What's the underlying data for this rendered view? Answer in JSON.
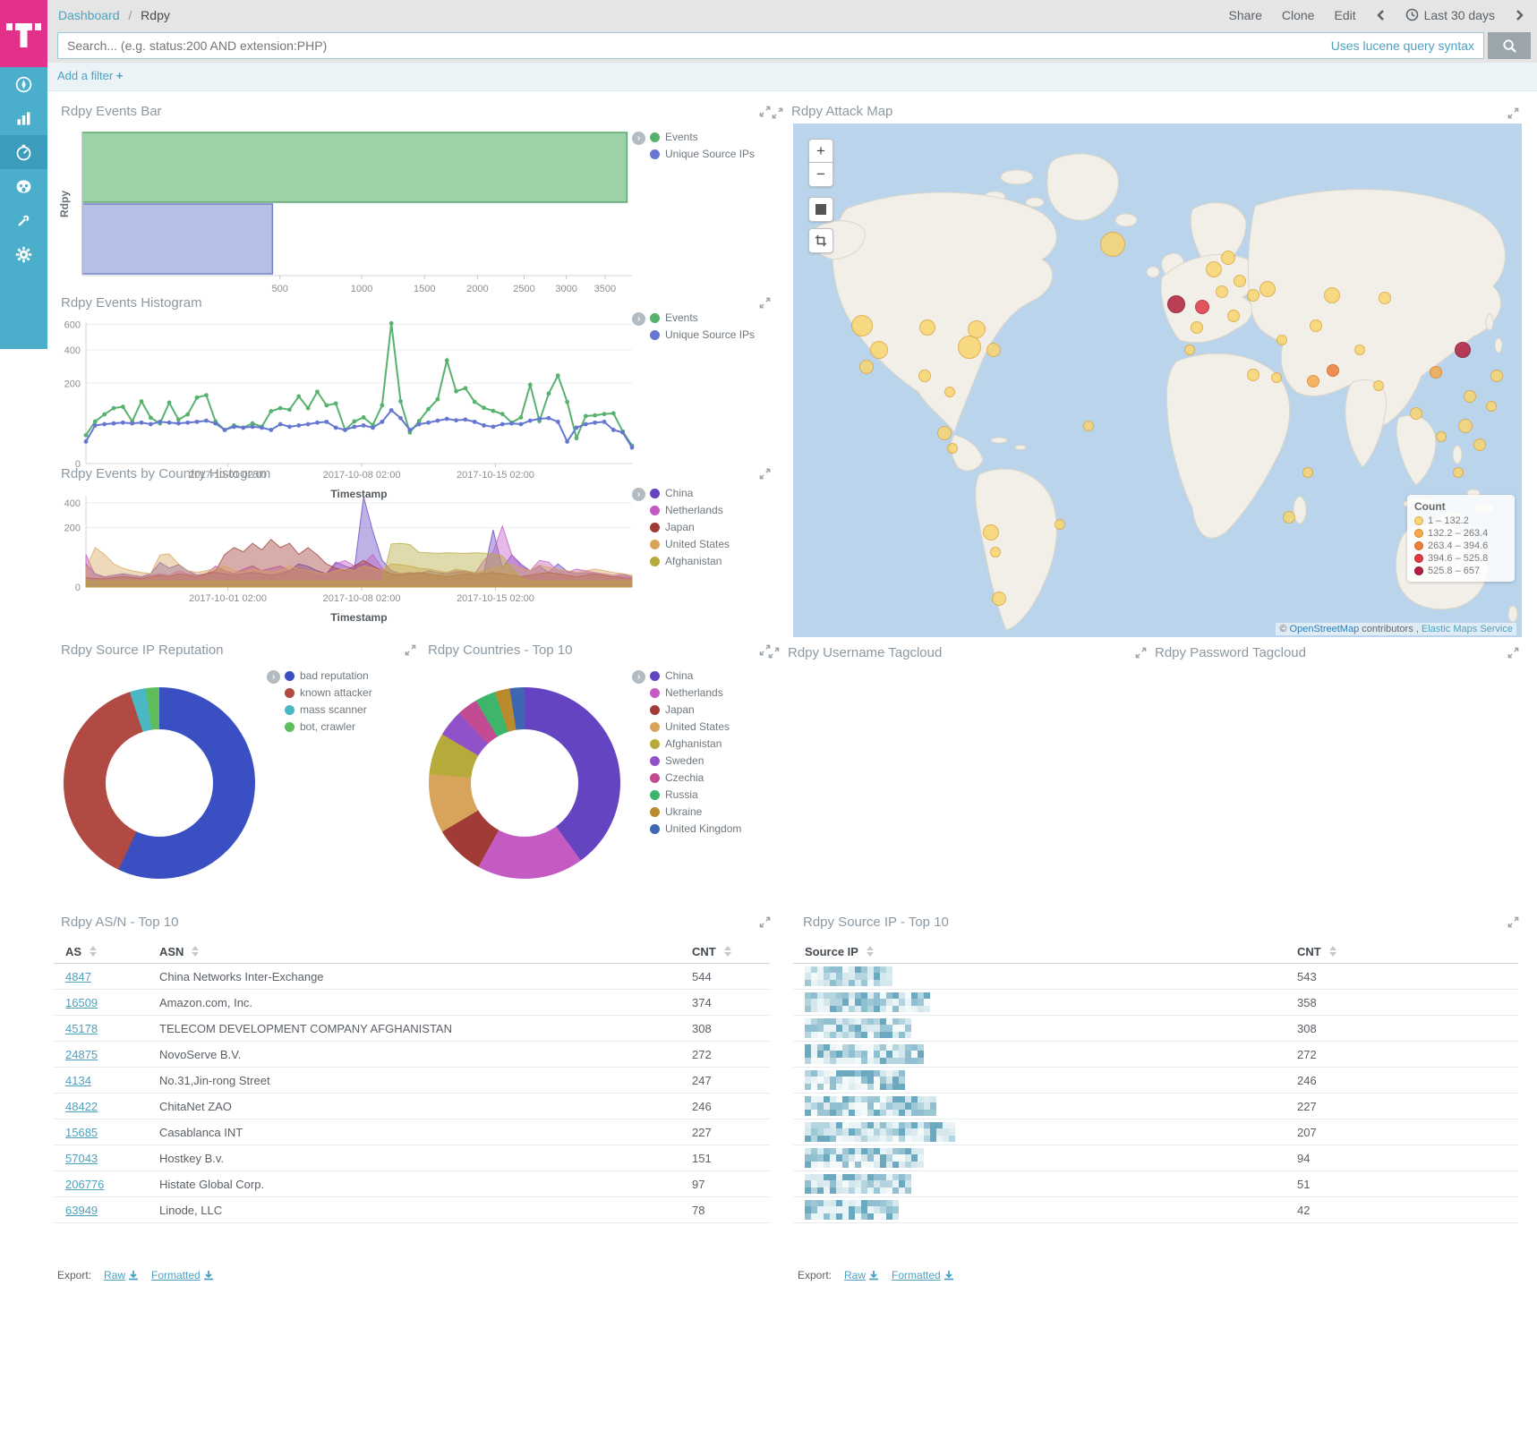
{
  "header": {
    "breadcrumb": [
      "Dashboard",
      "Rdpy"
    ],
    "breadcrumb_sep": "/",
    "menu": [
      "Share",
      "Clone",
      "Edit"
    ],
    "time_range": "Last 30 days"
  },
  "search": {
    "placeholder": "Search... (e.g. status:200 AND extension:PHP)",
    "hint": "Uses lucene query syntax"
  },
  "filter_bar": {
    "add_label": "Add a filter",
    "plus": "+"
  },
  "sidebar": {
    "items": [
      {
        "icon": "compass-icon"
      },
      {
        "icon": "bar-chart-icon"
      },
      {
        "icon": "dashboard-icon",
        "selected": true
      },
      {
        "icon": "mask-icon"
      },
      {
        "icon": "wrench-icon"
      },
      {
        "icon": "gear-icon"
      }
    ]
  },
  "panels": {
    "events_bar": "Rdpy Events Bar",
    "events_histogram": "Rdpy Events Histogram",
    "country_histogram": "Rdpy Events by Country Histogram",
    "attack_map": "Rdpy Attack Map",
    "ip_reputation": "Rdpy Source IP Reputation",
    "countries": "Rdpy Countries - Top 10",
    "username_tagcloud": "Rdpy Username Tagcloud",
    "password_tagcloud": "Rdpy Password Tagcloud",
    "asn_table": "Rdpy AS/N - Top 10",
    "srcip_table": "Rdpy Source IP - Top 10"
  },
  "chart_data": [
    {
      "id": "events_bar",
      "type": "bar",
      "orientation": "horizontal",
      "title": "Rdpy Events Bar",
      "ylabel": "Rdpy",
      "categories": [
        "Rdpy"
      ],
      "scale": "sqrt",
      "xmax": 3870,
      "xticks": [
        500,
        1000,
        1500,
        2000,
        2500,
        3000,
        3500
      ],
      "series": [
        {
          "name": "Events",
          "legend_color": "#57B26E",
          "fill": "#9BD2A7",
          "stroke": "#5FA671",
          "values": [
            3800
          ]
        },
        {
          "name": "Unique Source IPs",
          "legend_color": "#6577D0",
          "fill": "#B6BFE8",
          "stroke": "#7280C8",
          "values": [
            463
          ]
        }
      ]
    },
    {
      "id": "events_histogram",
      "type": "line",
      "title": "Rdpy Events Histogram",
      "xlabel": "Timestamp",
      "scale": "sqrt",
      "ymax": 620,
      "yticks": [
        0,
        200,
        400,
        600
      ],
      "xticks": [
        {
          "label": "2017-10-01 02:00",
          "f": 0.26
        },
        {
          "label": "2017-10-08 02:00",
          "f": 0.505
        },
        {
          "label": "2017-10-15 02:00",
          "f": 0.75
        }
      ],
      "series": [
        {
          "name": "Events",
          "color": "#57B26E",
          "values": [
            25,
            55,
            75,
            95,
            100,
            55,
            120,
            65,
            50,
            115,
            60,
            75,
            135,
            145,
            55,
            35,
            45,
            40,
            50,
            42,
            85,
            95,
            90,
            140,
            95,
            160,
            105,
            112,
            35,
            55,
            66,
            46,
            105,
            610,
            120,
            30,
            56,
            92,
            128,
            330,
            162,
            176,
            118,
            96,
            86,
            76,
            52,
            66,
            192,
            56,
            152,
            240,
            118,
            20,
            70,
            72,
            76,
            78,
            32,
            10
          ]
        },
        {
          "name": "Unique Source IPs",
          "color": "#6577D0",
          "values": [
            15,
            45,
            48,
            50,
            52,
            50,
            52,
            48,
            54,
            52,
            50,
            52,
            54,
            57,
            50,
            35,
            42,
            40,
            42,
            40,
            35,
            48,
            42,
            45,
            48,
            52,
            54,
            40,
            35,
            42,
            45,
            40,
            54,
            88,
            64,
            35,
            48,
            52,
            57,
            62,
            58,
            60,
            54,
            45,
            42,
            48,
            50,
            48,
            57,
            62,
            64,
            54,
            15,
            40,
            48,
            52,
            54,
            35,
            30,
            8
          ]
        }
      ]
    },
    {
      "id": "country_histogram",
      "type": "area",
      "title": "Rdpy Events by Country Histogram",
      "xlabel": "Timestamp",
      "scale": "sqrt",
      "ymax": 470,
      "yticks": [
        0,
        200,
        400
      ],
      "xticks": [
        {
          "label": "2017-10-01 02:00",
          "f": 0.26
        },
        {
          "label": "2017-10-08 02:00",
          "f": 0.505
        },
        {
          "label": "2017-10-15 02:00",
          "f": 0.75
        }
      ],
      "series": [
        {
          "name": "China",
          "color": "#6544C1",
          "values": [
            30,
            10,
            6,
            8,
            10,
            8,
            6,
            10,
            34,
            20,
            28,
            15,
            8,
            10,
            12,
            10,
            8,
            10,
            12,
            10,
            8,
            10,
            15,
            30,
            24,
            15,
            10,
            35,
            25,
            18,
            460,
            175,
            40,
            15,
            10,
            12,
            10,
            15,
            12,
            10,
            12,
            15,
            10,
            12,
            185,
            20,
            58,
            30,
            15,
            25,
            12,
            30,
            14,
            10,
            12,
            10,
            8,
            6,
            8,
            5
          ]
        },
        {
          "name": "Netherlands",
          "color": "#C35BC3",
          "values": [
            60,
            8,
            5,
            6,
            8,
            6,
            5,
            8,
            10,
            8,
            15,
            10,
            8,
            10,
            25,
            15,
            10,
            18,
            25,
            15,
            20,
            25,
            15,
            20,
            15,
            12,
            10,
            30,
            40,
            25,
            30,
            60,
            20,
            10,
            8,
            10,
            12,
            10,
            8,
            10,
            15,
            12,
            10,
            40,
            70,
            210,
            60,
            25,
            15,
            40,
            35,
            15,
            12,
            18,
            15,
            12,
            10,
            8,
            10,
            6
          ]
        },
        {
          "name": "Japan",
          "color": "#A03B36",
          "values": [
            5,
            4,
            4,
            5,
            6,
            5,
            4,
            6,
            8,
            6,
            10,
            8,
            6,
            10,
            15,
            60,
            88,
            70,
            108,
            78,
            128,
            88,
            108,
            60,
            88,
            58,
            30,
            20,
            15,
            25,
            40,
            25,
            15,
            10,
            8,
            10,
            12,
            10,
            8,
            6,
            8,
            10,
            8,
            10,
            12,
            10,
            8,
            6,
            8,
            10,
            12,
            10,
            8,
            6,
            8,
            10,
            8,
            6,
            5,
            4
          ]
        },
        {
          "name": "United States",
          "color": "#D8A45C",
          "values": [
            20,
            88,
            60,
            30,
            20,
            15,
            12,
            10,
            58,
            62,
            30,
            15,
            12,
            15,
            20,
            25,
            15,
            12,
            18,
            15,
            12,
            15,
            25,
            18,
            15,
            12,
            10,
            15,
            20,
            15,
            25,
            20,
            15,
            30,
            28,
            25,
            20,
            18,
            15,
            12,
            18,
            15,
            12,
            15,
            20,
            25,
            30,
            20,
            15,
            28,
            22,
            18,
            15,
            12,
            15,
            18,
            15,
            12,
            10,
            8
          ]
        },
        {
          "name": "Afghanistan",
          "color": "#B5AA3A",
          "values": [
            2,
            2,
            2,
            2,
            2,
            2,
            2,
            2,
            2,
            2,
            2,
            2,
            2,
            2,
            2,
            2,
            2,
            2,
            2,
            2,
            2,
            2,
            2,
            2,
            2,
            2,
            2,
            2,
            2,
            2,
            2,
            2,
            2,
            105,
            108,
            102,
            68,
            66,
            64,
            66,
            65,
            64,
            66,
            65,
            60,
            55,
            20,
            5,
            2,
            2,
            2,
            2,
            2,
            2,
            2,
            2,
            2,
            2,
            2,
            2
          ]
        }
      ]
    },
    {
      "id": "ip_reputation_donut",
      "type": "pie",
      "title": "Rdpy Source IP Reputation",
      "slices": [
        {
          "label": "bad reputation",
          "color": "#3A50C2",
          "pct": 57
        },
        {
          "label": "known attacker",
          "color": "#B04A42",
          "pct": 38
        },
        {
          "label": "mass scanner",
          "color": "#49B8C2",
          "pct": 2.7
        },
        {
          "label": "bot, crawler",
          "color": "#5FBE5B",
          "pct": 2.3
        }
      ]
    },
    {
      "id": "countries_donut",
      "type": "pie",
      "title": "Rdpy Countries - Top 10",
      "slices": [
        {
          "label": "China",
          "color": "#6544C1",
          "pct": 40
        },
        {
          "label": "Netherlands",
          "color": "#C35BC3",
          "pct": 18
        },
        {
          "label": "Japan",
          "color": "#A03B36",
          "pct": 8.5
        },
        {
          "label": "United States",
          "color": "#D8A45C",
          "pct": 10
        },
        {
          "label": "Afghanistan",
          "color": "#B5AA3A",
          "pct": 7
        },
        {
          "label": "Sweden",
          "color": "#9152C9",
          "pct": 4.5
        },
        {
          "label": "Czechia",
          "color": "#C24B93",
          "pct": 3.5
        },
        {
          "label": "Russia",
          "color": "#3FB56B",
          "pct": 3.5
        },
        {
          "label": "Ukraine",
          "color": "#BA8B2E",
          "pct": 2.5
        },
        {
          "label": "United Kingdom",
          "color": "#3F66B0",
          "pct": 2.5
        }
      ]
    },
    {
      "id": "attack_map",
      "type": "map",
      "title": "Rdpy Attack Map",
      "legend_title": "Count",
      "levels": [
        {
          "range": "1 – 132.2",
          "fill": "#F8D671",
          "stroke": "#DFA73E"
        },
        {
          "range": "132.2 – 263.4",
          "fill": "#F5A94C",
          "stroke": "#DB8A26"
        },
        {
          "range": "263.4 – 394.6",
          "fill": "#EF7E3B",
          "stroke": "#D2601F"
        },
        {
          "range": "394.6 – 525.8",
          "fill": "#DF3A44",
          "stroke": "#B3232E"
        },
        {
          "range": "525.8 – 657",
          "fill": "#B2203E",
          "stroke": "#8C1030"
        }
      ],
      "circles": [
        [
          0.439,
          0.236,
          14,
          1
        ],
        [
          0.094,
          0.393,
          12,
          1
        ],
        [
          0.118,
          0.441,
          10,
          1
        ],
        [
          0.101,
          0.473,
          8,
          1
        ],
        [
          0.184,
          0.397,
          9,
          1
        ],
        [
          0.252,
          0.4,
          10,
          1
        ],
        [
          0.242,
          0.435,
          13,
          1
        ],
        [
          0.275,
          0.441,
          8,
          1
        ],
        [
          0.181,
          0.492,
          7,
          1
        ],
        [
          0.208,
          0.603,
          8,
          1
        ],
        [
          0.219,
          0.632,
          6,
          1
        ],
        [
          0.271,
          0.797,
          9,
          1
        ],
        [
          0.278,
          0.835,
          6,
          1
        ],
        [
          0.366,
          0.78,
          6,
          1
        ],
        [
          0.282,
          0.925,
          8,
          1
        ],
        [
          0.526,
          0.352,
          10,
          5
        ],
        [
          0.562,
          0.358,
          8,
          4
        ],
        [
          0.577,
          0.284,
          9,
          1
        ],
        [
          0.597,
          0.262,
          8,
          1
        ],
        [
          0.613,
          0.307,
          7,
          1
        ],
        [
          0.632,
          0.335,
          7,
          1
        ],
        [
          0.651,
          0.322,
          9,
          1
        ],
        [
          0.589,
          0.328,
          7,
          1
        ],
        [
          0.554,
          0.397,
          7,
          1
        ],
        [
          0.604,
          0.374,
          7,
          1
        ],
        [
          0.74,
          0.335,
          9,
          1
        ],
        [
          0.812,
          0.339,
          7,
          1
        ],
        [
          0.718,
          0.393,
          7,
          1
        ],
        [
          0.671,
          0.421,
          6,
          1
        ],
        [
          0.632,
          0.489,
          7,
          1
        ],
        [
          0.664,
          0.494,
          6,
          1
        ],
        [
          0.714,
          0.502,
          7,
          2
        ],
        [
          0.741,
          0.481,
          7,
          3
        ],
        [
          0.778,
          0.441,
          6,
          1
        ],
        [
          0.919,
          0.441,
          9,
          5
        ],
        [
          0.882,
          0.485,
          7,
          2
        ],
        [
          0.855,
          0.565,
          7,
          1
        ],
        [
          0.804,
          0.511,
          6,
          1
        ],
        [
          0.929,
          0.531,
          7,
          1
        ],
        [
          0.922,
          0.588,
          8,
          1
        ],
        [
          0.942,
          0.626,
          7,
          1
        ],
        [
          0.889,
          0.609,
          6,
          1
        ],
        [
          0.707,
          0.68,
          6,
          1
        ],
        [
          0.681,
          0.766,
          7,
          1
        ],
        [
          0.405,
          0.588,
          6,
          1
        ],
        [
          0.965,
          0.492,
          7,
          1
        ],
        [
          0.958,
          0.55,
          6,
          1
        ],
        [
          0.544,
          0.441,
          6,
          1
        ],
        [
          0.215,
          0.523,
          6,
          1
        ],
        [
          0.913,
          0.68,
          6,
          1
        ]
      ],
      "controls": {
        "zoom_in": "+",
        "zoom_out": "−"
      },
      "attribution": {
        "prefix": "©",
        "osm": "OpenStreetMap",
        "middle": "contributors ,",
        "ems": "Elastic Maps Service"
      }
    }
  ],
  "tables": {
    "asn": {
      "title": "Rdpy AS/N - Top 10",
      "columns": [
        "AS",
        "ASN",
        "CNT"
      ],
      "rows": [
        [
          "4847",
          "China Networks Inter-Exchange",
          "544"
        ],
        [
          "16509",
          "Amazon.com, Inc.",
          "374"
        ],
        [
          "45178",
          "TELECOM DEVELOPMENT COMPANY AFGHANISTAN",
          "308"
        ],
        [
          "24875",
          "NovoServe B.V.",
          "272"
        ],
        [
          "4134",
          "No.31,Jin-rong Street",
          "247"
        ],
        [
          "48422",
          "ChitaNet ZAO",
          "246"
        ],
        [
          "15685",
          "Casablanca INT",
          "227"
        ],
        [
          "57043",
          "Hostkey B.v.",
          "151"
        ],
        [
          "206776",
          "Histate Global Corp.",
          "97"
        ],
        [
          "63949",
          "Linode, LLC",
          "78"
        ]
      ]
    },
    "srcip": {
      "title": "Rdpy Source IP - Top 10",
      "columns": [
        "Source IP",
        "CNT"
      ],
      "ip_masked": true,
      "rows": [
        {
          "cnt": "543"
        },
        {
          "cnt": "358"
        },
        {
          "cnt": "308"
        },
        {
          "cnt": "272"
        },
        {
          "cnt": "246"
        },
        {
          "cnt": "227"
        },
        {
          "cnt": "207"
        },
        {
          "cnt": "94"
        },
        {
          "cnt": "51"
        },
        {
          "cnt": "42"
        }
      ]
    }
  },
  "export": {
    "label": "Export:",
    "raw": "Raw",
    "formatted": "Formatted"
  }
}
